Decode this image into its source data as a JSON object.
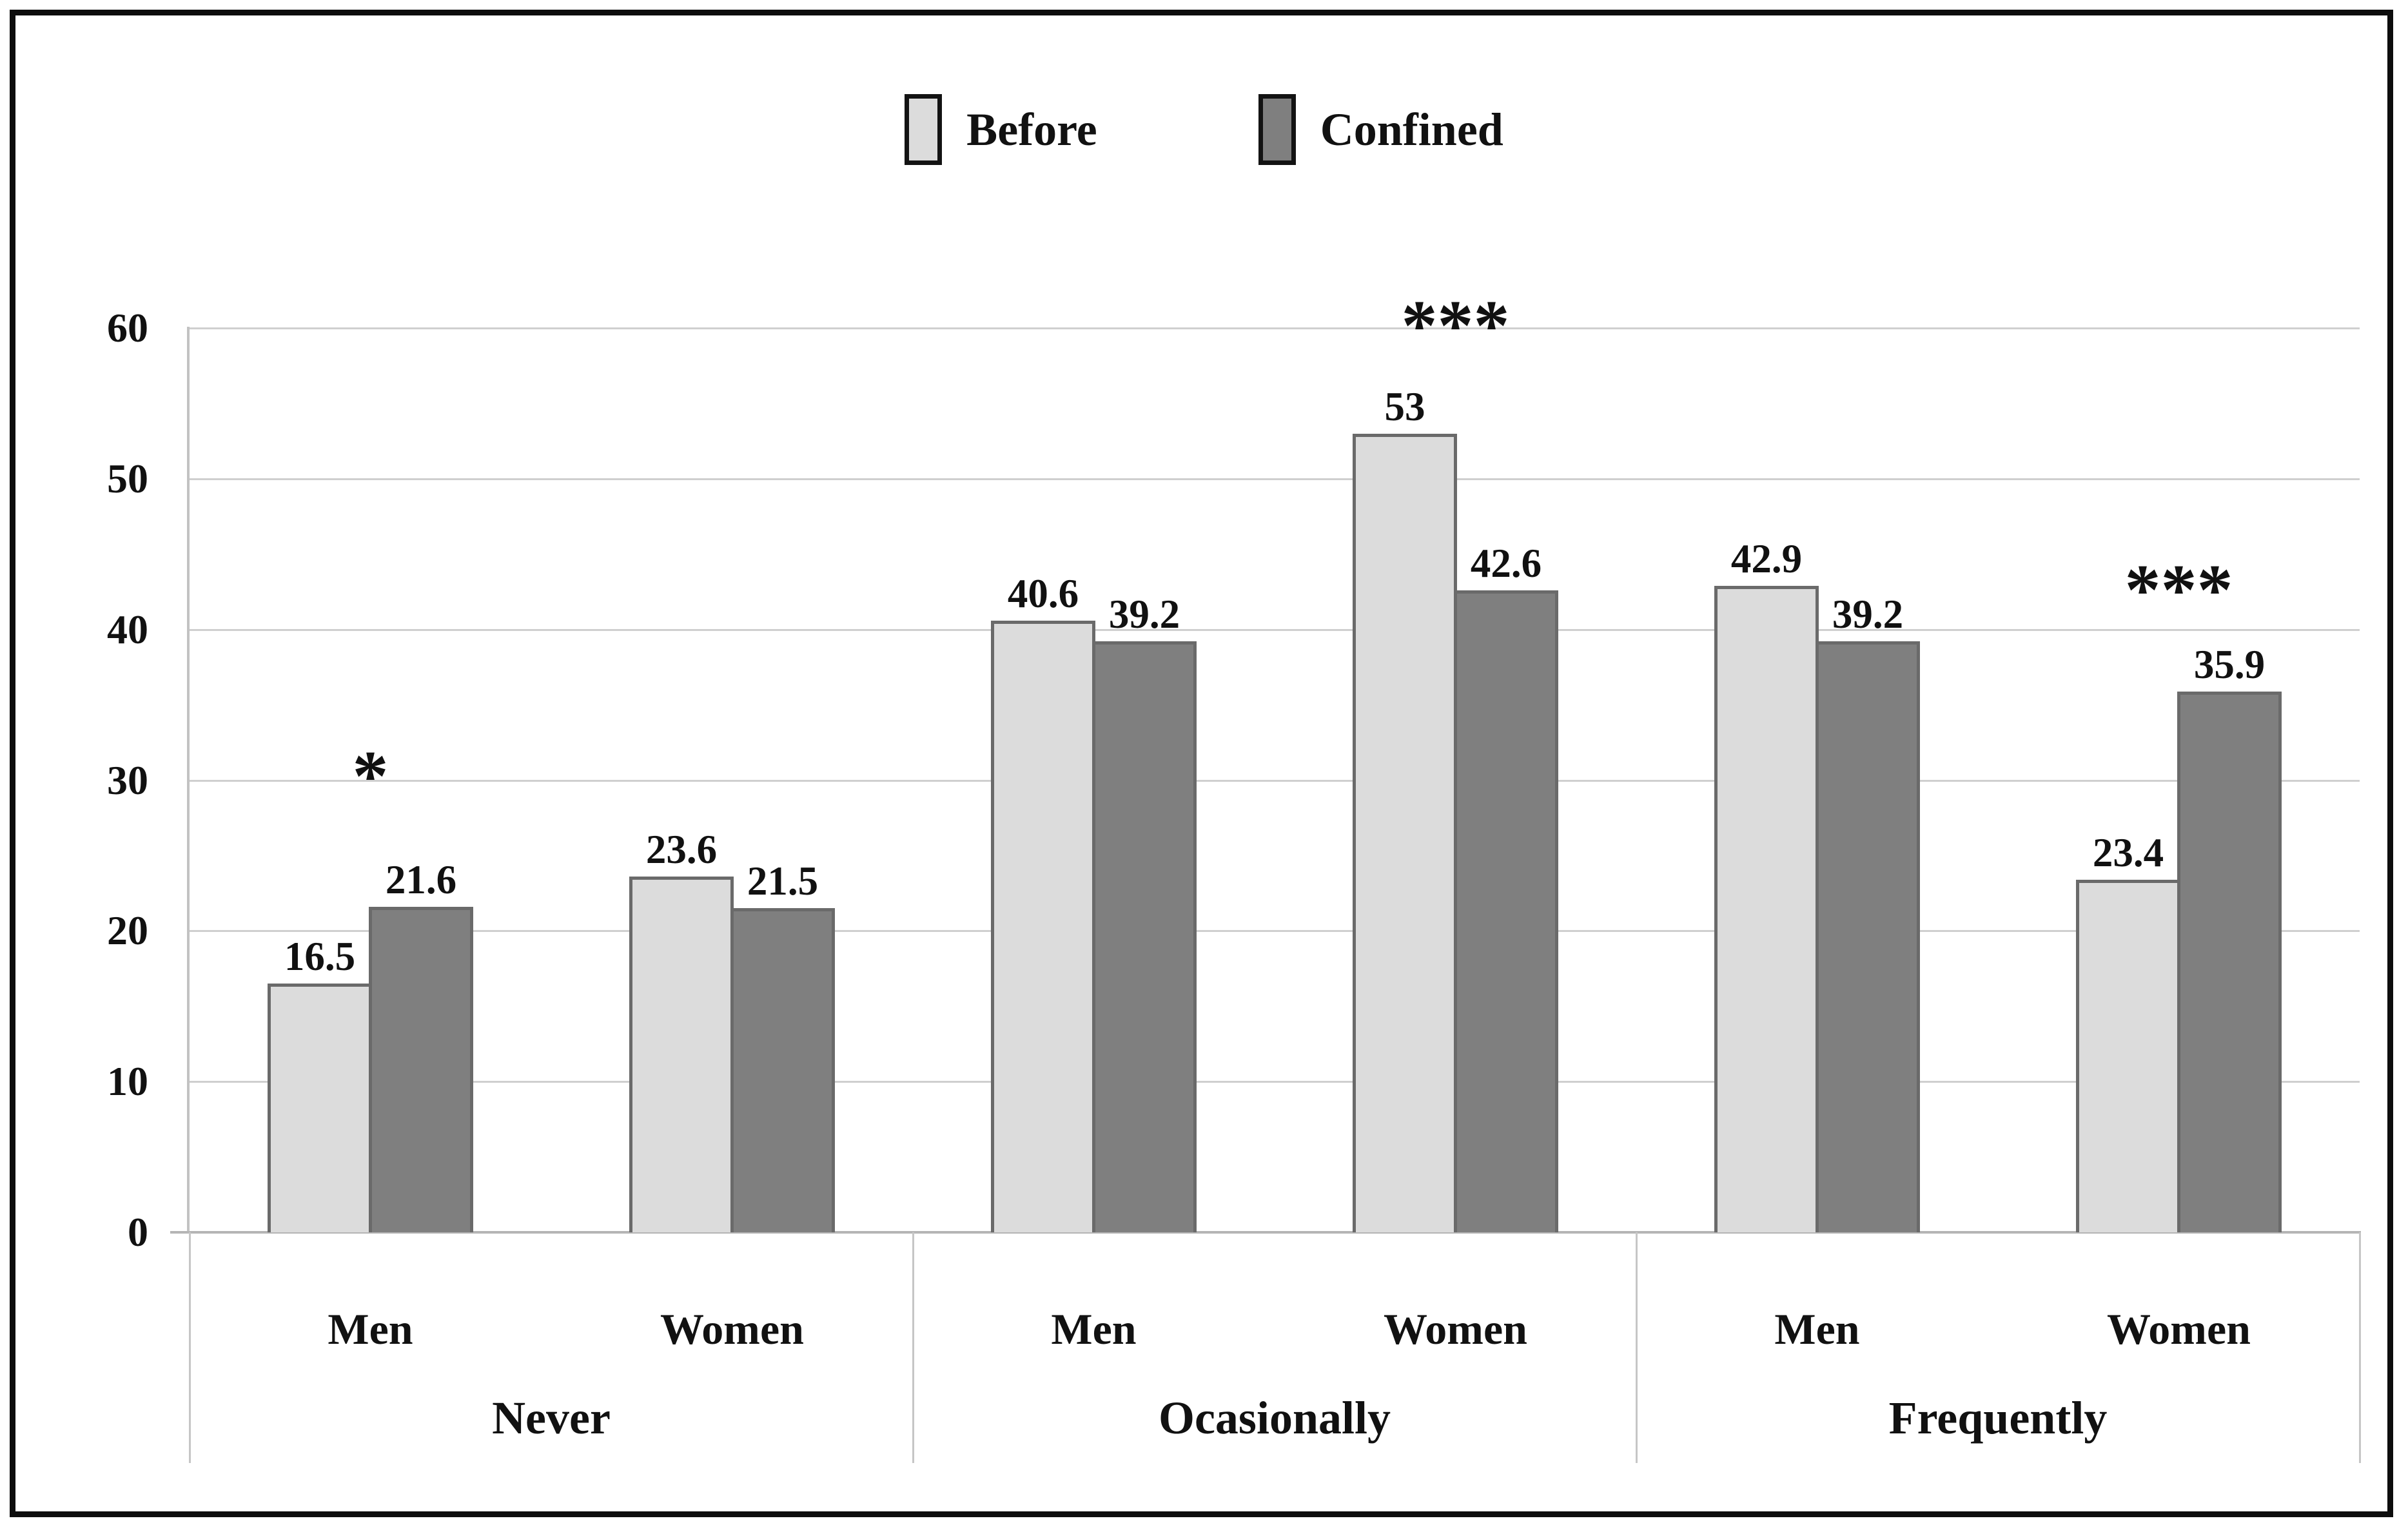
{
  "figure": {
    "background": "#ffffff",
    "frame_color": "#0d0d0d",
    "gridline_color": "#cfcfcf",
    "axis_color": "#b5b5b5",
    "bar_border_color": "#6a6a6a"
  },
  "legend": {
    "items": [
      {
        "label": "Before",
        "color": "#dcdcdc"
      },
      {
        "label": "Confined",
        "color": "#7f7f7f"
      }
    ]
  },
  "chart_data": {
    "type": "bar",
    "title": "",
    "xlabel": "",
    "ylabel": "",
    "ylim": [
      0,
      60
    ],
    "yticks": [
      60,
      50,
      40,
      30,
      20,
      10,
      0
    ],
    "grid": true,
    "legend_position": "top-center",
    "series_names": [
      "Before",
      "Confined"
    ],
    "series_colors": [
      "#dcdcdc",
      "#7f7f7f"
    ],
    "groups": [
      {
        "category": "Never",
        "subgroups": [
          {
            "label": "Men",
            "values": [
              16.5,
              21.6
            ],
            "value_labels": [
              "16.5",
              "21.6"
            ],
            "significance": "*",
            "significance_value": 30.9
          },
          {
            "label": "Women",
            "values": [
              23.6,
              21.5
            ],
            "value_labels": [
              "23.6",
              "21.5"
            ],
            "significance": "",
            "significance_value": null
          }
        ]
      },
      {
        "category": "Ocasionally",
        "subgroups": [
          {
            "label": "Men",
            "values": [
              40.6,
              39.2
            ],
            "value_labels": [
              "40.6",
              "39.2"
            ],
            "significance": "",
            "significance_value": null
          },
          {
            "label": "Women",
            "values": [
              53,
              42.6
            ],
            "value_labels": [
              "53",
              "42.6"
            ],
            "significance": "***",
            "significance_value": 60.8
          }
        ]
      },
      {
        "category": "Frequently",
        "subgroups": [
          {
            "label": "Men",
            "values": [
              42.9,
              39.2
            ],
            "value_labels": [
              "42.9",
              "39.2"
            ],
            "significance": "",
            "significance_value": null
          },
          {
            "label": "Women",
            "values": [
              23.4,
              35.9
            ],
            "value_labels": [
              "23.4",
              "35.9"
            ],
            "significance": "***",
            "significance_value": 43.3
          }
        ]
      }
    ]
  }
}
